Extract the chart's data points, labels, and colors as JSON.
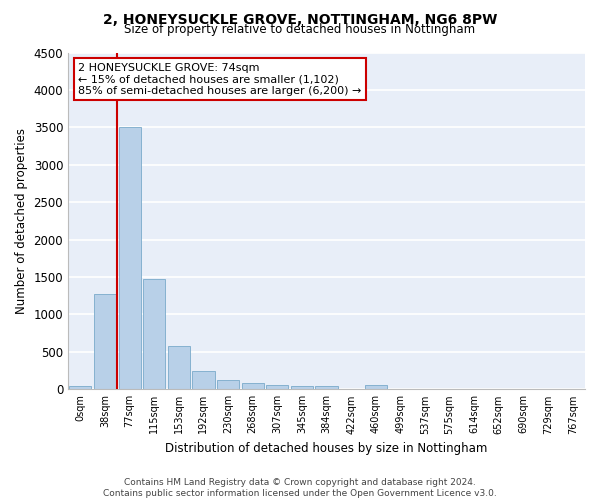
{
  "title": "2, HONEYSUCKLE GROVE, NOTTINGHAM, NG6 8PW",
  "subtitle": "Size of property relative to detached houses in Nottingham",
  "xlabel": "Distribution of detached houses by size in Nottingham",
  "ylabel": "Number of detached properties",
  "bar_color": "#b8d0e8",
  "bar_edge_color": "#7aaaca",
  "background_color": "#e8eef8",
  "grid_color": "#ffffff",
  "categories": [
    "0sqm",
    "38sqm",
    "77sqm",
    "115sqm",
    "153sqm",
    "192sqm",
    "230sqm",
    "268sqm",
    "307sqm",
    "345sqm",
    "384sqm",
    "422sqm",
    "460sqm",
    "499sqm",
    "537sqm",
    "575sqm",
    "614sqm",
    "652sqm",
    "690sqm",
    "729sqm",
    "767sqm"
  ],
  "values": [
    40,
    1270,
    3500,
    1480,
    575,
    240,
    120,
    85,
    60,
    50,
    45,
    0,
    55,
    0,
    0,
    0,
    0,
    0,
    0,
    0,
    0
  ],
  "ylim": [
    0,
    4500
  ],
  "yticks": [
    0,
    500,
    1000,
    1500,
    2000,
    2500,
    3000,
    3500,
    4000,
    4500
  ],
  "annotation_title": "2 HONEYSUCKLE GROVE: 74sqm",
  "annotation_line1": "← 15% of detached houses are smaller (1,102)",
  "annotation_line2": "85% of semi-detached houses are larger (6,200) →",
  "annotation_box_color": "#ffffff",
  "annotation_border_color": "#cc0000",
  "property_line_color": "#cc0000",
  "footer_line1": "Contains HM Land Registry data © Crown copyright and database right 2024.",
  "footer_line2": "Contains public sector information licensed under the Open Government Licence v3.0."
}
